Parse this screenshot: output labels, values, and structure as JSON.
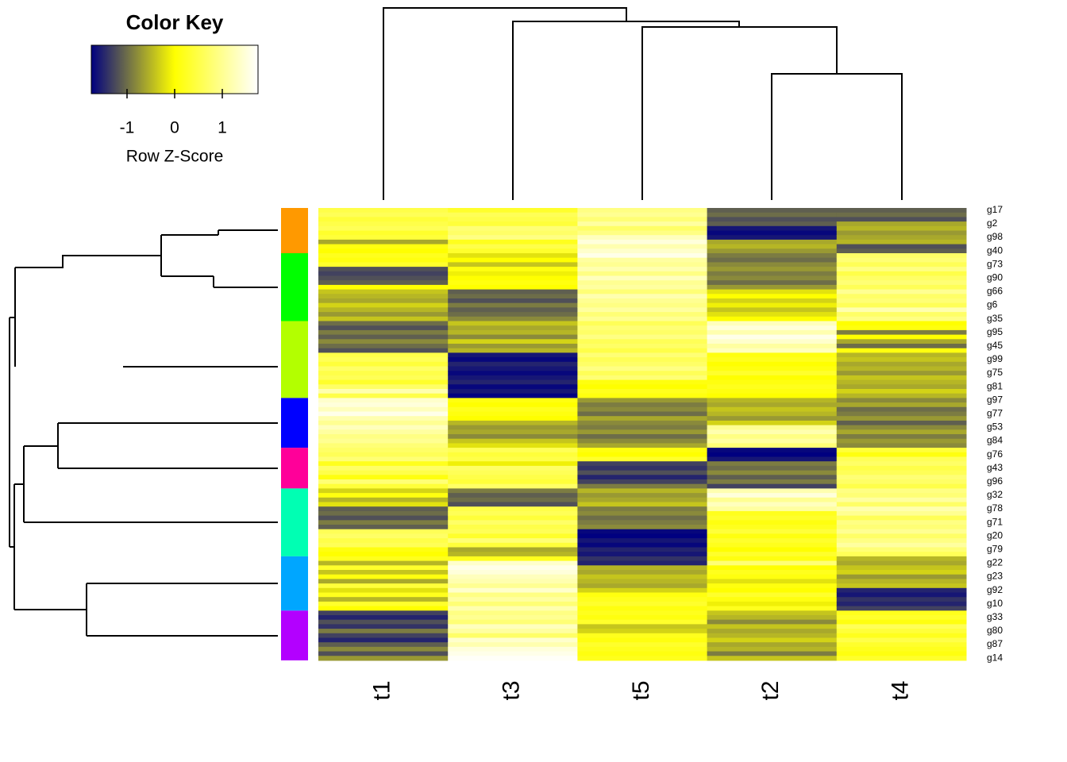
{
  "chart_data": {
    "type": "heatmap",
    "key_title": "Color Key",
    "key_label": "Row Z-Score",
    "zlim": [
      -1.75,
      1.75
    ],
    "zticks": [
      -1,
      0,
      1
    ],
    "colors": [
      "#000080",
      "#ffff00",
      "#ffffff"
    ],
    "row_groups": [
      {
        "color": "#ff9900",
        "size": 10
      },
      {
        "color": "#00ff00",
        "size": 15
      },
      {
        "color": "#b3ff00",
        "size": 17
      },
      {
        "color": "#0000ff",
        "size": 11
      },
      {
        "color": "#ff0099",
        "size": 9
      },
      {
        "color": "#00ffb3",
        "size": 15
      },
      {
        "color": "#00a6ff",
        "size": 12
      },
      {
        "color": "#b300ff",
        "size": 11
      }
    ],
    "categories": [
      "g17",
      null,
      null,
      "g2",
      null,
      null,
      "g98",
      null,
      null,
      "g40",
      null,
      null,
      "g73",
      null,
      null,
      "g90",
      null,
      null,
      "g66",
      null,
      null,
      "g6",
      null,
      null,
      "g35",
      null,
      null,
      "g95",
      null,
      null,
      "g45",
      null,
      null,
      "g99",
      null,
      null,
      "g75",
      null,
      null,
      "g81",
      null,
      null,
      "g97",
      null,
      null,
      "g77",
      null,
      null,
      "g53",
      null,
      null,
      "g84",
      null,
      null,
      "g76",
      null,
      null,
      "g43",
      null,
      null,
      "g96",
      null,
      null,
      "g32",
      null,
      null,
      "g78",
      null,
      null,
      "g71",
      null,
      null,
      "g20",
      null,
      null,
      "g79",
      null,
      null,
      "g22",
      null,
      null,
      "g23",
      null,
      null,
      "g92",
      null,
      null,
      "g10",
      null,
      null,
      "g33",
      null,
      null,
      "g80",
      null,
      null,
      "g87",
      null,
      null,
      "g14"
    ],
    "series": [
      {
        "name": "t1",
        "values": [
          0.5,
          0.6,
          0.4,
          0.5,
          0.6,
          0.3,
          0.4,
          -0.6,
          0.1,
          0.0,
          0.2,
          0.1,
          0.3,
          -1.2,
          -1.3,
          -1.2,
          -1.1,
          0.0,
          -0.4,
          -0.5,
          -0.6,
          -0.3,
          -0.5,
          -0.7,
          -0.4,
          -1.0,
          -1.2,
          -0.9,
          -1.1,
          -0.8,
          -1.0,
          -1.2,
          0.5,
          0.6,
          0.4,
          0.7,
          0.5,
          0.6,
          0.3,
          0.7,
          1.2,
          0.5,
          1.4,
          1.5,
          1.3,
          1.6,
          1.2,
          1.0,
          1.3,
          1.1,
          0.9,
          1.0,
          0.8,
          0.7,
          0.6,
          0.8,
          0.2,
          0.7,
          0.5,
          0.1,
          0.8,
          0.4,
          -0.3,
          0.1,
          -0.5,
          -0.2,
          -1.1,
          -1.0,
          -1.2,
          -0.9,
          -1.1,
          0.6,
          0.7,
          0.5,
          0.6,
          0.1,
          0.0,
          0.2,
          -0.5,
          0.3,
          -0.4,
          0.1,
          -0.6,
          0.4,
          -0.2,
          0.2,
          -0.5,
          0.3,
          0.0,
          -1.3,
          -1.5,
          -1.2,
          -1.4,
          -0.9,
          -1.3,
          -1.5,
          -1.1,
          -0.8,
          -1.2,
          -0.7
        ]
      },
      {
        "name": "t3",
        "values": [
          0.3,
          0.6,
          0.5,
          0.4,
          0.8,
          0.7,
          0.9,
          0.2,
          0.5,
          0.3,
          -0.2,
          0.0,
          -0.4,
          0.1,
          -0.1,
          0.0,
          0.1,
          0.0,
          -1.1,
          -1.0,
          -1.2,
          -0.9,
          -1.1,
          -1.0,
          -0.8,
          -0.4,
          -0.6,
          -0.5,
          -0.8,
          -0.3,
          -0.7,
          -0.5,
          -1.6,
          -1.7,
          -1.5,
          -1.6,
          -1.7,
          -1.6,
          -1.5,
          -1.7,
          -1.6,
          -1.8,
          0.1,
          0.0,
          0.2,
          0.1,
          0.0,
          -0.5,
          -0.7,
          -0.6,
          -0.8,
          -0.4,
          -0.2,
          0.6,
          0.4,
          0.5,
          -0.1,
          0.7,
          0.6,
          0.5,
          0.4,
          0.7,
          -0.9,
          -1.1,
          -1.0,
          -1.2,
          0.5,
          0.6,
          0.4,
          0.7,
          0.5,
          0.6,
          0.3,
          0.8,
          0.4,
          -0.6,
          -0.5,
          0.2,
          1.4,
          1.6,
          1.5,
          1.3,
          1.2,
          1.0,
          1.4,
          0.9,
          1.1,
          0.8,
          1.2,
          0.9,
          1.0,
          0.8,
          1.3,
          1.1,
          0.7,
          1.4,
          1.2,
          1.5,
          1.6,
          1.7
        ]
      },
      {
        "name": "t5",
        "values": [
          0.9,
          1.0,
          0.8,
          1.1,
          0.7,
          0.9,
          1.3,
          1.5,
          1.2,
          1.4,
          1.6,
          1.1,
          1.0,
          1.2,
          0.9,
          1.3,
          1.0,
          1.1,
          0.8,
          1.2,
          1.0,
          0.9,
          1.1,
          0.8,
          1.0,
          0.6,
          0.8,
          0.7,
          0.9,
          0.6,
          0.7,
          0.5,
          0.8,
          0.6,
          0.7,
          0.9,
          0.6,
          0.8,
          0.1,
          0.0,
          0.2,
          0.1,
          -0.7,
          -0.9,
          -0.8,
          -1.0,
          -0.6,
          -0.8,
          -0.9,
          -0.7,
          -1.0,
          -0.8,
          -0.6,
          0.1,
          0.0,
          0.3,
          -1.3,
          -1.4,
          -1.2,
          -1.5,
          -1.3,
          -0.9,
          -0.5,
          -0.7,
          -0.6,
          -0.4,
          -0.9,
          -0.8,
          -1.0,
          -0.9,
          -0.8,
          -1.7,
          -1.8,
          -1.6,
          -1.7,
          -1.5,
          -1.6,
          -1.4,
          -1.5,
          -0.5,
          -0.6,
          -0.4,
          -0.5,
          -0.6,
          -0.3,
          0.1,
          0.2,
          0.3,
          0.1,
          0.2,
          0.1,
          0.3,
          -0.4,
          -0.3,
          0.2,
          0.1,
          0.3,
          0.2,
          0.1,
          0.2
        ]
      },
      {
        "name": "t2",
        "values": [
          -1.1,
          -1.0,
          -1.2,
          -1.1,
          -1.6,
          -1.7,
          -1.6,
          -0.6,
          -0.5,
          -0.7,
          -0.9,
          -1.0,
          -0.8,
          -0.7,
          -0.9,
          -0.8,
          -1.0,
          -0.7,
          -0.2,
          0.0,
          -0.3,
          -0.1,
          -0.4,
          -0.2,
          0.0,
          1.3,
          1.5,
          1.2,
          1.6,
          1.4,
          1.1,
          1.3,
          0.1,
          0.2,
          0.0,
          0.1,
          0.3,
          0.0,
          0.1,
          0.2,
          0.1,
          0.0,
          -0.5,
          -0.6,
          -0.4,
          -0.5,
          -0.7,
          -0.3,
          1.0,
          1.2,
          0.9,
          1.1,
          0.8,
          -1.7,
          -1.8,
          -1.6,
          -0.9,
          -1.0,
          -0.8,
          -1.1,
          -0.9,
          -1.3,
          1.2,
          1.5,
          1.0,
          1.3,
          1.1,
          0.2,
          0.3,
          0.1,
          0.2,
          0.4,
          0.1,
          0.3,
          0.2,
          0.0,
          0.3,
          0.1,
          0.8,
          0.0,
          0.2,
          0.1,
          -0.2,
          0.1,
          0.0,
          0.3,
          0.1,
          -0.1,
          0.2,
          -0.4,
          -0.5,
          -0.8,
          -0.4,
          -0.6,
          -0.5,
          -0.3,
          -0.6,
          -0.5,
          -0.9,
          -0.4
        ]
      },
      {
        "name": "t4",
        "values": [
          -1.1,
          -1.0,
          -1.2,
          -0.6,
          -0.5,
          -0.7,
          -0.6,
          -0.5,
          -1.2,
          -1.1,
          0.7,
          0.8,
          0.6,
          0.9,
          0.5,
          0.7,
          0.8,
          0.6,
          1.0,
          0.7,
          0.8,
          0.6,
          1.2,
          0.7,
          0.9,
          0.0,
          0.1,
          -0.9,
          0.0,
          -0.6,
          -1.0,
          0.1,
          -0.5,
          -0.4,
          -0.6,
          -0.5,
          -0.7,
          -0.4,
          -0.5,
          -0.6,
          -0.3,
          -0.5,
          -0.8,
          -0.6,
          -1.0,
          -0.9,
          -0.7,
          -1.1,
          -0.8,
          -0.6,
          -0.9,
          -0.7,
          -0.8,
          0.4,
          0.1,
          0.6,
          0.7,
          0.5,
          0.6,
          0.8,
          0.7,
          0.5,
          0.9,
          0.8,
          1.1,
          0.7,
          1.2,
          1.0,
          0.6,
          0.9,
          0.8,
          1.0,
          0.7,
          0.9,
          1.1,
          0.8,
          0.6,
          -0.5,
          -0.6,
          -0.4,
          -0.3,
          -0.7,
          -0.5,
          -0.4,
          -1.5,
          -1.6,
          -1.4,
          -1.5,
          -1.3,
          0.2,
          0.3,
          0.1,
          0.6,
          0.4,
          0.2,
          0.5,
          0.3,
          0.2,
          0.1,
          0.3
        ]
      }
    ]
  }
}
